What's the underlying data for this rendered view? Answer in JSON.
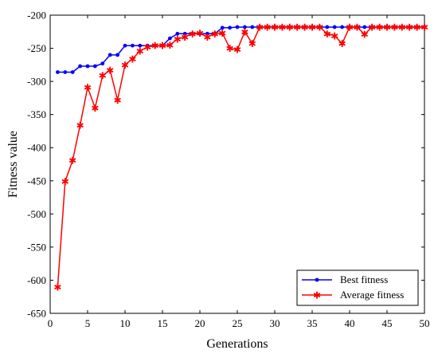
{
  "chart_data": {
    "type": "line",
    "xlabel": "Generations",
    "ylabel": "Fitness value",
    "xlim": [
      0,
      50
    ],
    "ylim": [
      -650,
      -200
    ],
    "xticks": [
      0,
      5,
      10,
      15,
      20,
      25,
      30,
      35,
      40,
      45,
      50
    ],
    "yticks": [
      -650,
      -600,
      -550,
      -500,
      -450,
      -400,
      -350,
      -300,
      -250,
      -200
    ],
    "grid": false,
    "legend_position": "bottom-right",
    "x": [
      1,
      2,
      3,
      4,
      5,
      6,
      7,
      8,
      9,
      10,
      11,
      12,
      13,
      14,
      15,
      16,
      17,
      18,
      19,
      20,
      21,
      22,
      23,
      24,
      25,
      26,
      27,
      28,
      29,
      30,
      31,
      32,
      33,
      34,
      35,
      36,
      37,
      38,
      39,
      40,
      41,
      42,
      43,
      44,
      45,
      46,
      47,
      48,
      49,
      50
    ],
    "series": [
      {
        "name": "Best fitness",
        "color": "#0000ff",
        "marker": "dot",
        "values": [
          -286,
          -286,
          -286,
          -277,
          -277,
          -277,
          -273,
          -260,
          -260,
          -246,
          -246,
          -246,
          -246,
          -246,
          -246,
          -235,
          -228,
          -228,
          -228,
          -228,
          -228,
          -228,
          -219,
          -219,
          -218,
          -218,
          -218,
          -218,
          -218,
          -218,
          -218,
          -218,
          -218,
          -218,
          -218,
          -218,
          -218,
          -218,
          -218,
          -218,
          -218,
          -218,
          -218,
          -218,
          -218,
          -218,
          -218,
          -218,
          -218,
          -218
        ]
      },
      {
        "name": "Average fitness",
        "color": "#ff0000",
        "marker": "star",
        "values": [
          -610,
          -451,
          -419,
          -366,
          -309,
          -340,
          -291,
          -283,
          -328,
          -275,
          -266,
          -254,
          -248,
          -246,
          -246,
          -245,
          -236,
          -233,
          -228,
          -227,
          -233,
          -228,
          -227,
          -250,
          -252,
          -225,
          -243,
          -218,
          -218,
          -218,
          -218,
          -218,
          -218,
          -218,
          -218,
          -218,
          -228,
          -231,
          -243,
          -218,
          -218,
          -229,
          -218,
          -218,
          -218,
          -218,
          -218,
          -218,
          -218,
          -218
        ]
      }
    ]
  }
}
